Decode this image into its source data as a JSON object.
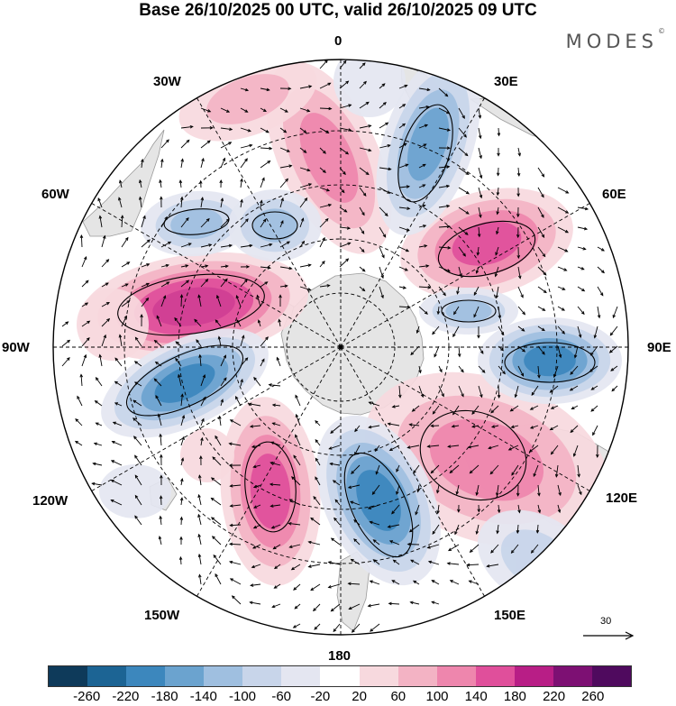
{
  "title": "Base 26/10/2025 00 UTC, valid 26/10/2025 09 UTC",
  "brand": "MODES",
  "brand_mark": "©",
  "longitude_labels": {
    "lon_0": "0",
    "lon_30e": "30E",
    "lon_60e": "60E",
    "lon_90e": "90E",
    "lon_120e": "120E",
    "lon_150e": "150E",
    "lon_180": "180",
    "lon_150w": "150W",
    "lon_120w": "120W",
    "lon_90w": "90W",
    "lon_60w": "60W",
    "lon_30w": "30W"
  },
  "reference_vector": {
    "label": "30"
  },
  "colorbar": {
    "ticks": [
      "-260",
      "-220",
      "-180",
      "-140",
      "-100",
      "-60",
      "-20",
      "20",
      "60",
      "100",
      "140",
      "180",
      "220",
      "260"
    ],
    "colors": [
      "#0e3a5a",
      "#1c6494",
      "#3c87bd",
      "#6ba3cf",
      "#9fbfe0",
      "#c8d5ea",
      "#e4e6f1",
      "#ffffff",
      "#f7d9de",
      "#f3b3c4",
      "#ee86ad",
      "#e04f9b",
      "#b81e86",
      "#7d1073",
      "#4f0a5e"
    ]
  },
  "palette": {
    "land": "#e5e5e5",
    "coast": "#9a9a9a",
    "grid": "#000000"
  }
}
